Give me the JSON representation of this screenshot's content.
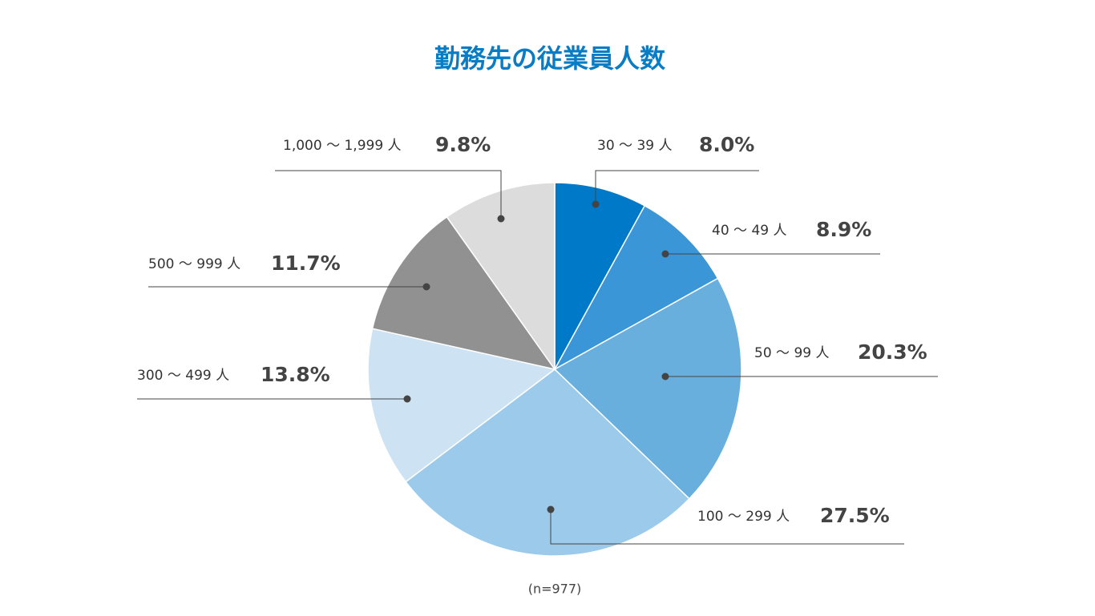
{
  "chart_data": {
    "type": "pie",
    "title": "勤務先の従業員人数",
    "categories": [
      "30 ～ 39 人",
      "40 ～ 49 人",
      "50 ～ 99 人",
      "100 ～ 299 人",
      "300 ～ 499 人",
      "500 ～ 999 人",
      "1,000 ～ 1,999 人"
    ],
    "values": [
      8.0,
      8.9,
      20.3,
      27.5,
      13.8,
      11.7,
      9.8
    ],
    "value_labels": [
      "8.0%",
      "8.9%",
      "20.3%",
      "27.5%",
      "13.8%",
      "11.7%",
      "9.8%"
    ],
    "colors": [
      "#0079c8",
      "#3a96d6",
      "#68afdd",
      "#9ccaea",
      "#cde3f3",
      "#919191",
      "#dcdcdc"
    ],
    "note": "(n=977)"
  }
}
